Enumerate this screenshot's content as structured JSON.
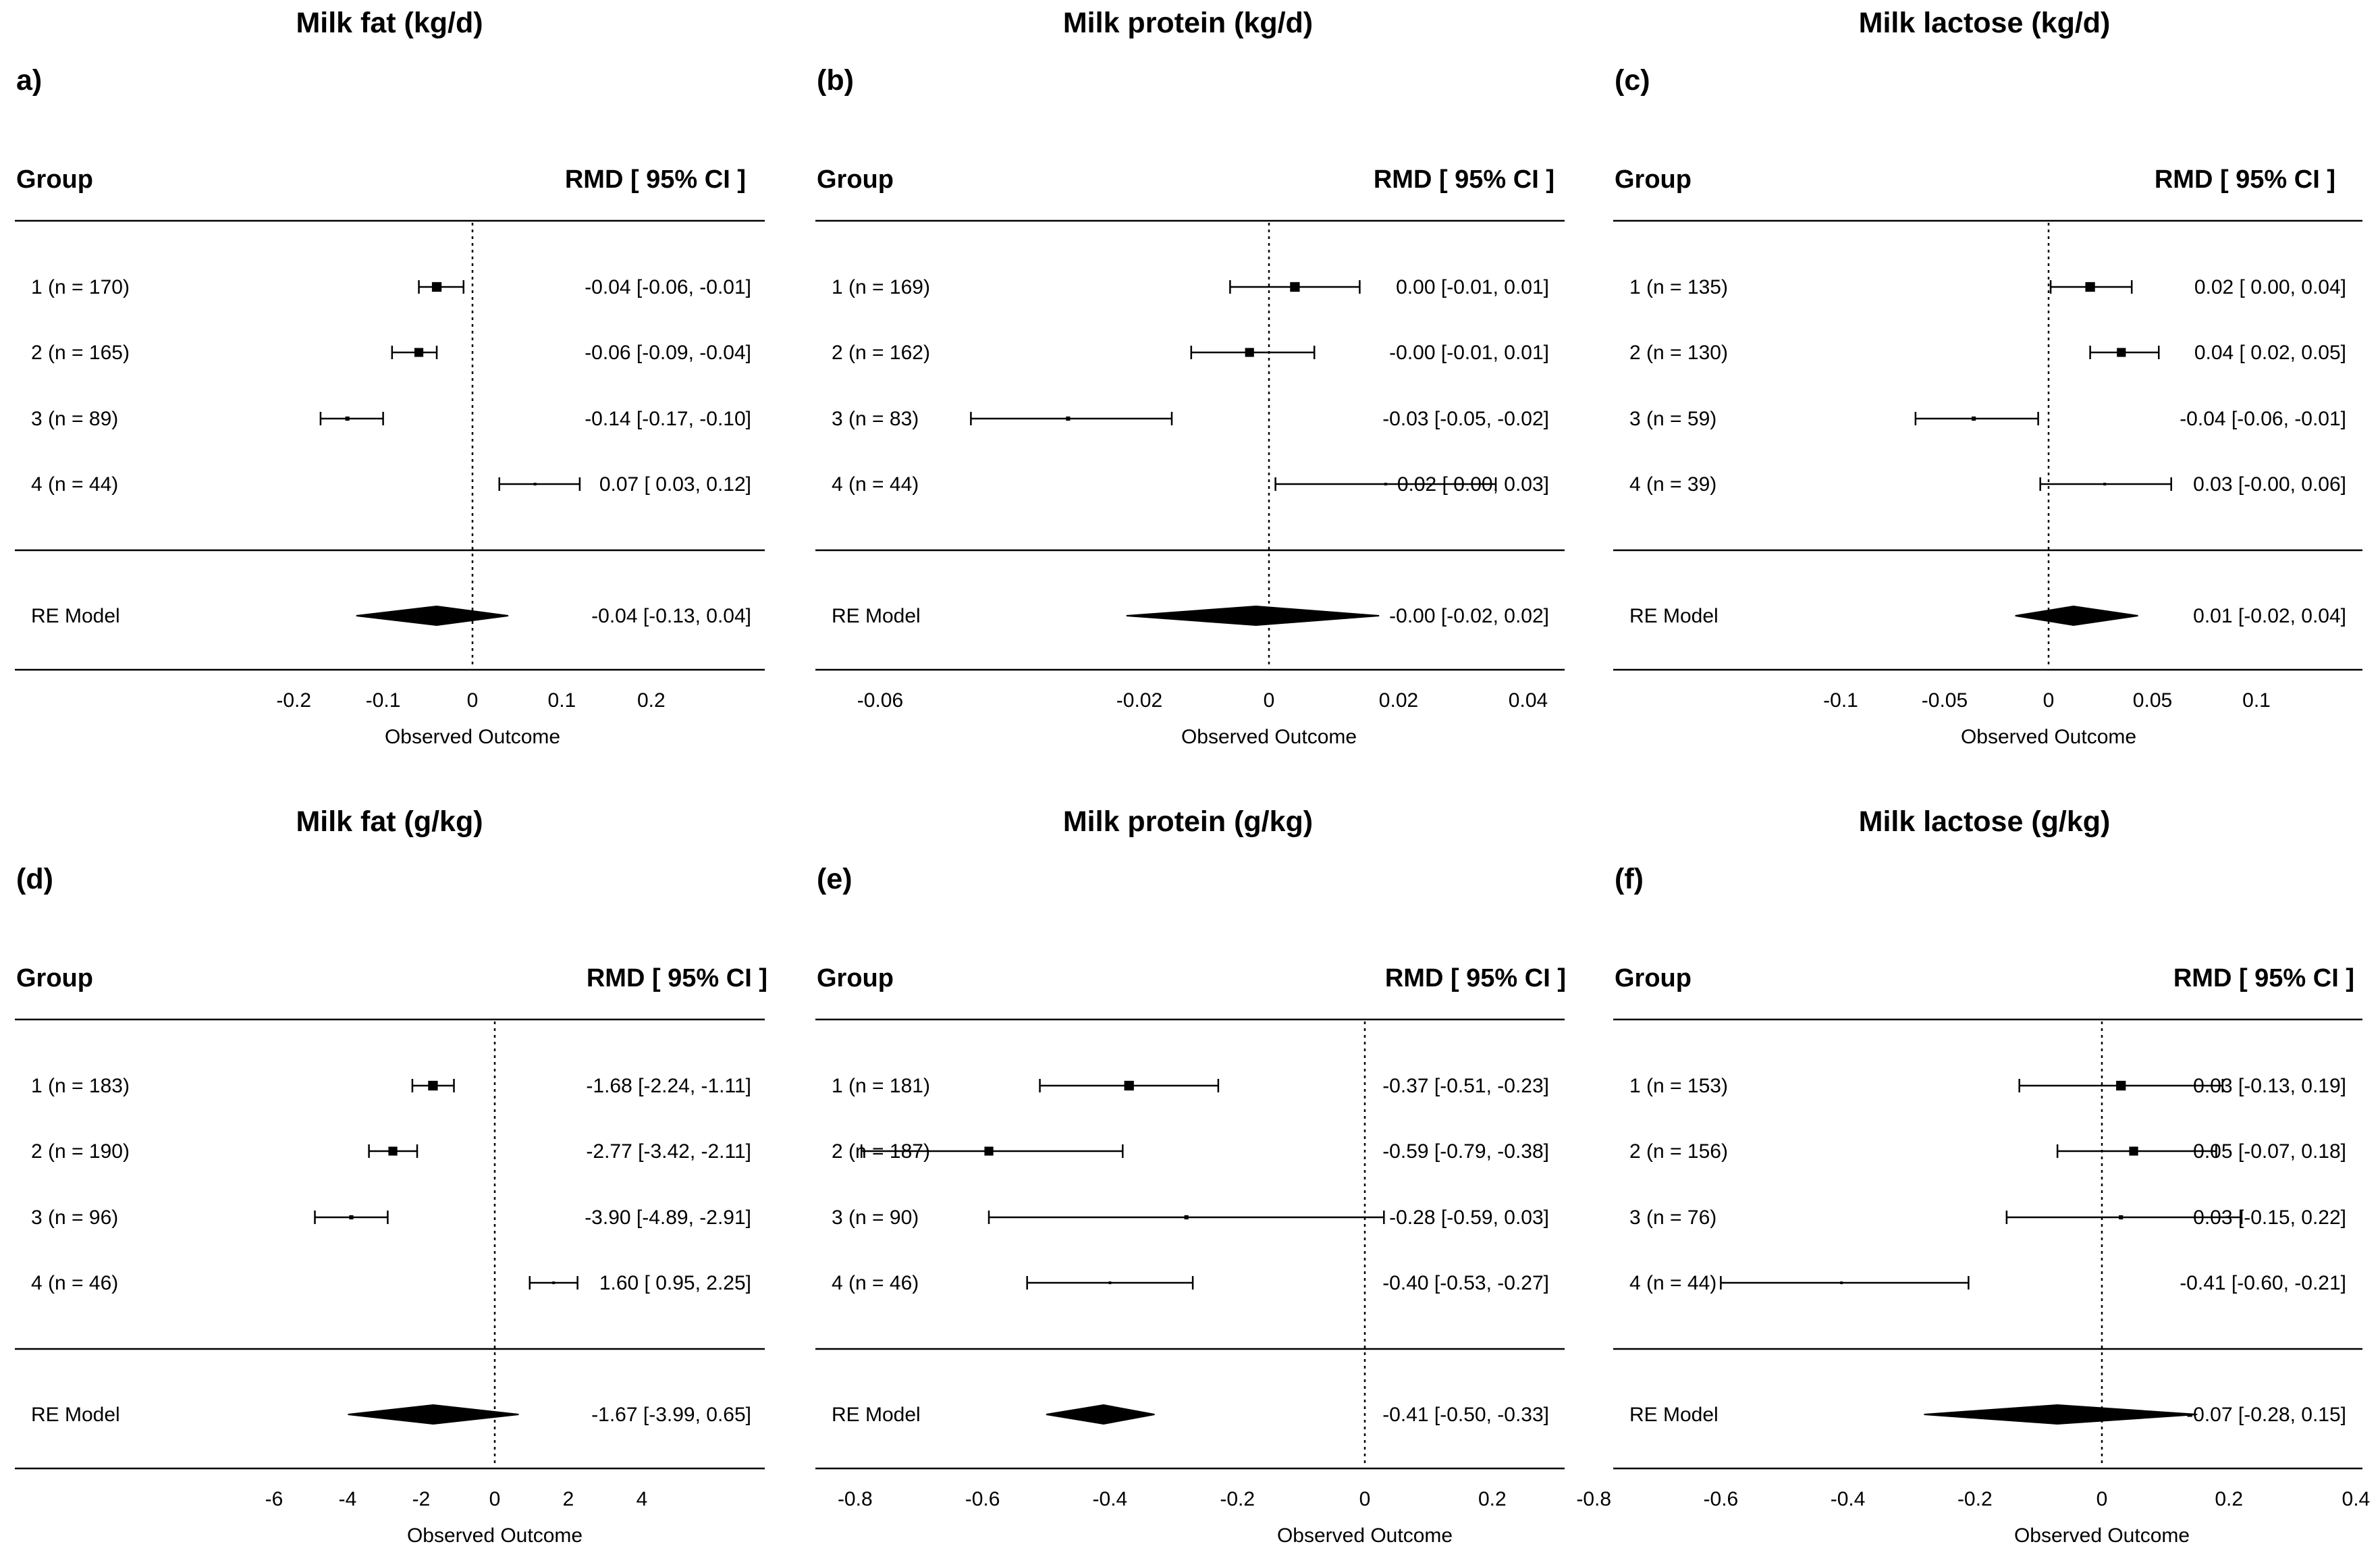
{
  "chart_data": [
    {
      "type": "forest",
      "label": "a)",
      "title": "Milk fat  (kg/d)",
      "header_left": "Group",
      "header_right": "RMD  [ 95% CI ]",
      "xlabel": "Observed Outcome",
      "xticks": [
        -0.2,
        -0.1,
        0,
        0.1,
        0.2
      ],
      "xtick_labels": [
        "-0.2",
        "-0.1",
        "0",
        "0.1",
        "0.2"
      ],
      "rows": [
        {
          "label": "1 (n = 170)",
          "est": -0.04,
          "lo": -0.06,
          "hi": -0.01,
          "text": "-0.04 [-0.06, -0.01]"
        },
        {
          "label": "2 (n = 165)",
          "est": -0.06,
          "lo": -0.09,
          "hi": -0.04,
          "text": "-0.06 [-0.09, -0.04]"
        },
        {
          "label": "3 (n = 89)",
          "est": -0.14,
          "lo": -0.17,
          "hi": -0.1,
          "text": "-0.14 [-0.17, -0.10]"
        },
        {
          "label": "4 (n = 44)",
          "est": 0.07,
          "lo": 0.03,
          "hi": 0.12,
          "text": "0.07 [ 0.03,  0.12]"
        }
      ],
      "summary": {
        "label": "RE Model",
        "est": -0.04,
        "lo": -0.13,
        "hi": 0.04,
        "text": "-0.04 [-0.13,  0.04]"
      }
    },
    {
      "type": "forest",
      "label": "(b)",
      "title": "Milk protein (kg/d)",
      "header_left": "Group",
      "header_right": "RMD  [ 95% CI ]",
      "xlabel": "Observed Outcome",
      "xticks": [
        -0.06,
        -0.02,
        0,
        0.02,
        0.04
      ],
      "xtick_labels": [
        "-0.06",
        "-0.02",
        "0",
        "0.02",
        "0.04"
      ],
      "rows": [
        {
          "label": "1 (n = 169)",
          "est": 0.004,
          "lo": -0.006,
          "hi": 0.014,
          "text": "0.00 [-0.01,  0.01]"
        },
        {
          "label": "2 (n = 162)",
          "est": -0.003,
          "lo": -0.012,
          "hi": 0.007,
          "text": "-0.00 [-0.01,  0.01]"
        },
        {
          "label": "3 (n = 83)",
          "est": -0.031,
          "lo": -0.046,
          "hi": -0.015,
          "text": "-0.03 [-0.05, -0.02]"
        },
        {
          "label": "4 (n = 44)",
          "est": 0.018,
          "lo": 0.001,
          "hi": 0.035,
          "text": "0.02 [ 0.00,  0.03]"
        }
      ],
      "summary": {
        "label": "RE Model",
        "est": -0.002,
        "lo": -0.022,
        "hi": 0.017,
        "text": "-0.00 [-0.02,  0.02]"
      }
    },
    {
      "type": "forest",
      "label": "(c)",
      "title": "Milk lactose (kg/d)",
      "header_left": "Group",
      "header_right": "RMD  [ 95% CI ]",
      "xlabel": "Observed Outcome",
      "xticks": [
        -0.1,
        -0.05,
        0,
        0.05,
        0.1
      ],
      "xtick_labels": [
        "-0.1",
        "-0.05",
        "0",
        "0.05",
        "0.1"
      ],
      "rows": [
        {
          "label": "1 (n = 135)",
          "est": 0.02,
          "lo": 0.001,
          "hi": 0.04,
          "text": "0.02 [ 0.00,  0.04]"
        },
        {
          "label": "2 (n = 130)",
          "est": 0.035,
          "lo": 0.02,
          "hi": 0.053,
          "text": "0.04 [ 0.02,  0.05]"
        },
        {
          "label": "3 (n = 59)",
          "est": -0.036,
          "lo": -0.064,
          "hi": -0.005,
          "text": "-0.04 [-0.06, -0.01]"
        },
        {
          "label": "4 (n = 39)",
          "est": 0.027,
          "lo": -0.004,
          "hi": 0.059,
          "text": "0.03 [-0.00,  0.06]"
        }
      ],
      "summary": {
        "label": "RE Model",
        "est": 0.012,
        "lo": -0.016,
        "hi": 0.043,
        "text": "0.01 [-0.02,  0.04]"
      }
    },
    {
      "type": "forest",
      "label": "(d)",
      "title": "Milk fat (g/kg)",
      "header_left": "Group",
      "header_right": "RMD  [ 95% CI ]",
      "xlabel": "Observed Outcome",
      "xticks": [
        -6,
        -4,
        -2,
        0,
        2,
        4
      ],
      "xtick_labels": [
        "-6",
        "-4",
        "-2",
        "0",
        "2",
        "4"
      ],
      "rows": [
        {
          "label": "1 (n = 183)",
          "est": -1.68,
          "lo": -2.24,
          "hi": -1.11,
          "text": "-1.68 [-2.24, -1.11]"
        },
        {
          "label": "2 (n = 190)",
          "est": -2.77,
          "lo": -3.42,
          "hi": -2.11,
          "text": "-2.77 [-3.42, -2.11]"
        },
        {
          "label": "3 (n = 96)",
          "est": -3.9,
          "lo": -4.89,
          "hi": -2.91,
          "text": "-3.90 [-4.89, -2.91]"
        },
        {
          "label": "4 (n = 46)",
          "est": 1.6,
          "lo": 0.95,
          "hi": 2.25,
          "text": "1.60 [ 0.95,  2.25]"
        }
      ],
      "summary": {
        "label": "RE Model",
        "est": -1.67,
        "lo": -3.99,
        "hi": 0.65,
        "text": "-1.67 [-3.99,  0.65]"
      }
    },
    {
      "type": "forest",
      "label": "(e)",
      "title": "Milk protein (g/kg)",
      "header_left": "Group",
      "header_right": "RMD  [ 95% CI ]",
      "xlabel": "Observed Outcome",
      "xticks": [
        -0.8,
        -0.6,
        -0.4,
        -0.2,
        0,
        0.2
      ],
      "xtick_labels": [
        "-0.8",
        "-0.6",
        "-0.4",
        "-0.2",
        "0",
        "0.2"
      ],
      "rows": [
        {
          "label": "1 (n = 181)",
          "est": -0.37,
          "lo": -0.51,
          "hi": -0.23,
          "text": "-0.37 [-0.51, -0.23]"
        },
        {
          "label": "2 (n = 187)",
          "est": -0.59,
          "lo": -0.79,
          "hi": -0.38,
          "text": "-0.59 [-0.79, -0.38]"
        },
        {
          "label": "3 (n = 90)",
          "est": -0.28,
          "lo": -0.59,
          "hi": 0.03,
          "text": "-0.28 [-0.59,  0.03]"
        },
        {
          "label": "4 (n = 46)",
          "est": -0.4,
          "lo": -0.53,
          "hi": -0.27,
          "text": "-0.40 [-0.53, -0.27]"
        }
      ],
      "summary": {
        "label": "RE Model",
        "est": -0.41,
        "lo": -0.5,
        "hi": -0.33,
        "text": "-0.41 [-0.50, -0.33]"
      }
    },
    {
      "type": "forest",
      "label": "(f)",
      "title": "Milk lactose (g/kg)",
      "header_left": "Group",
      "header_right": "RMD  [ 95% CI ]",
      "xlabel": "Observed Outcome",
      "xticks": [
        -0.8,
        -0.6,
        -0.4,
        -0.2,
        0,
        0.2,
        0.4
      ],
      "xtick_labels": [
        "-0.8",
        "-0.6",
        "-0.4",
        "-0.2",
        "0",
        "0.2",
        "0.4"
      ],
      "rows": [
        {
          "label": "1 (n = 153)",
          "est": 0.03,
          "lo": -0.13,
          "hi": 0.19,
          "text": "0.03 [-0.13,  0.19]"
        },
        {
          "label": "2 (n = 156)",
          "est": 0.05,
          "lo": -0.07,
          "hi": 0.18,
          "text": "0.05 [-0.07,  0.18]"
        },
        {
          "label": "3 (n = 76)",
          "est": 0.03,
          "lo": -0.15,
          "hi": 0.22,
          "text": "0.03 [-0.15,  0.22]"
        },
        {
          "label": "4 (n = 44)",
          "est": -0.41,
          "lo": -0.6,
          "hi": -0.21,
          "text": "-0.41 [-0.60, -0.21]"
        }
      ],
      "summary": {
        "label": "RE Model",
        "est": -0.07,
        "lo": -0.28,
        "hi": 0.15,
        "text": "-0.07 [-0.28,  0.15]"
      }
    }
  ]
}
